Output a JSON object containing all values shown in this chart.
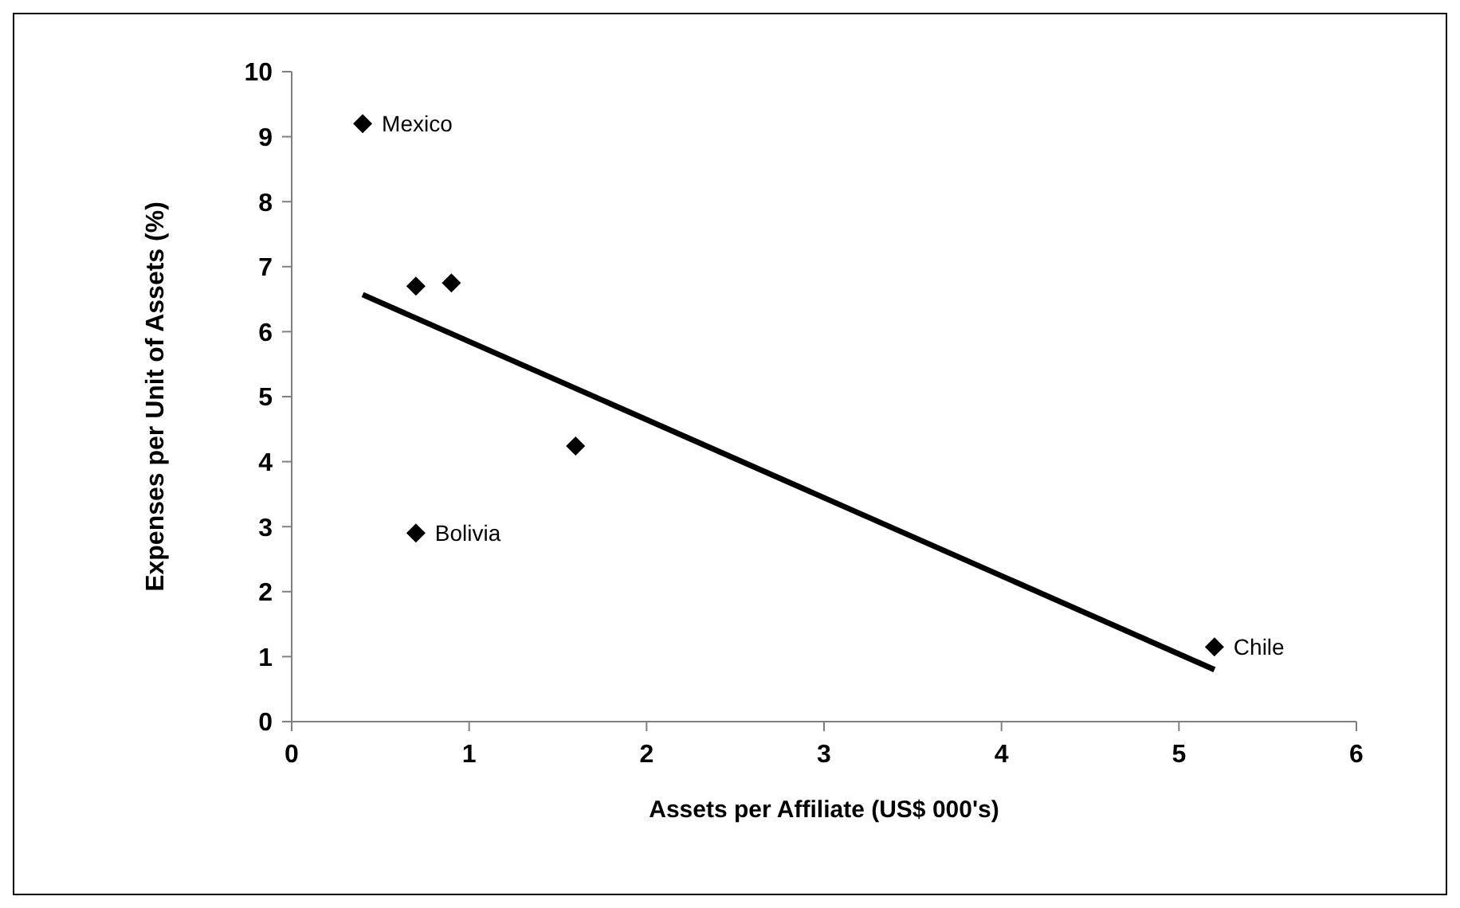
{
  "chart_data": {
    "type": "scatter",
    "xlabel": "Assets per Affiliate (US$ 000's)",
    "ylabel": "Expenses per Unit of Assets (%)",
    "xlim": [
      0,
      6
    ],
    "xticks": [
      0,
      1,
      2,
      3,
      4,
      5,
      6
    ],
    "ylim": [
      0,
      10
    ],
    "yticks": [
      0,
      1,
      2,
      3,
      4,
      5,
      6,
      7,
      8,
      9,
      10
    ],
    "grid": false,
    "legend": false,
    "series": [
      {
        "color": "#000000",
        "marker": "diamond",
        "x": [
          0.4,
          0.7,
          0.9,
          1.6,
          0.7,
          5.2
        ],
        "values": [
          9.2,
          6.7,
          6.75,
          4.24,
          2.9,
          1.15
        ]
      },
      {
        "type": "line",
        "color": "#000000",
        "marker": "none",
        "line_style": "solid",
        "x": [
          0.4,
          5.2
        ],
        "values": [
          6.57,
          0.8
        ]
      }
    ],
    "annotations": [
      {
        "text": "Mexico",
        "x": 0.4,
        "y": 9.2
      },
      {
        "text": "Bolivia",
        "x": 0.7,
        "y": 2.9
      },
      {
        "text": "Chile",
        "x": 5.2,
        "y": 1.15
      }
    ]
  }
}
